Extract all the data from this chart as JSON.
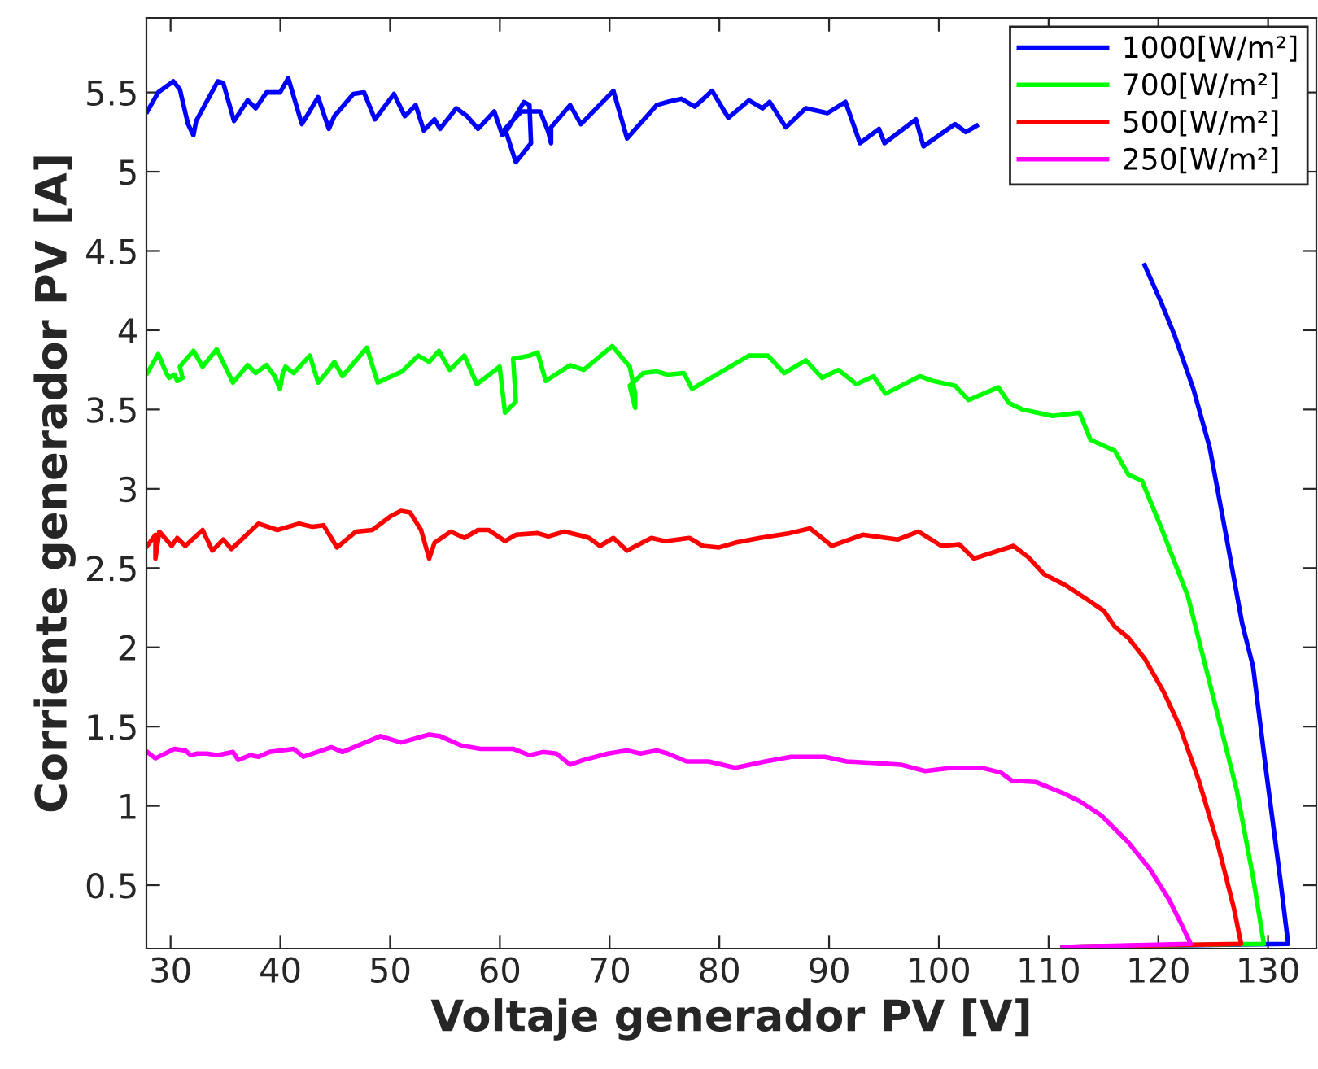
{
  "chart_data": {
    "type": "line",
    "xlabel": "Voltaje generador PV [V]",
    "ylabel": "Corriente generador PV [A]",
    "xlim": [
      27.8,
      134.4
    ],
    "ylim": [
      0.1,
      5.97
    ],
    "xticks": [
      30,
      40,
      50,
      60,
      70,
      80,
      90,
      100,
      110,
      120,
      130
    ],
    "yticks": [
      {
        "value": 0.5,
        "label": "0.5"
      },
      {
        "value": 1,
        "label": "1"
      },
      {
        "value": 1.5,
        "label": "1.5"
      },
      {
        "value": 2,
        "label": "2"
      },
      {
        "value": 2.5,
        "label": "2.5"
      },
      {
        "value": 3,
        "label": "3"
      },
      {
        "value": 3.5,
        "label": "3.5"
      },
      {
        "value": 4,
        "label": "4"
      },
      {
        "value": 4.5,
        "label": "4.5"
      },
      {
        "value": 5,
        "label": "5"
      },
      {
        "value": 5.5,
        "label": "5.5"
      }
    ],
    "grid": false,
    "legend": "top right",
    "marker": "none",
    "line_style": "solid",
    "series": [
      {
        "name": "1000[W/m²]",
        "color": "#0000ff",
        "x": [
          27.88,
          28.87,
          30.25,
          30.84,
          31.59,
          32.08,
          32.33,
          34.3,
          34.8,
          35.78,
          37.02,
          37.75,
          38.74,
          39.98,
          40.72,
          41.96,
          43.44,
          44.42,
          44.92,
          46.65,
          47.63,
          48.62,
          50.35,
          51.34,
          52.33,
          53.07,
          54.05,
          54.55,
          56.03,
          57.02,
          58.01,
          59.49,
          60.23,
          60.72,
          62.2,
          62.7,
          62.84,
          61.46,
          60.47,
          61.95,
          63.68,
          64.42,
          64.67,
          64.67,
          66.4,
          67.39,
          70.35,
          71.59,
          74.3,
          75.29,
          76.53,
          77.76,
          79.34,
          80.82,
          82.7,
          83.93,
          84.58,
          86.06,
          87.88,
          89.86,
          91.49,
          92.82,
          94.55,
          95.05,
          97.91,
          98.6,
          101.47,
          102.45,
          103.44,
          110,
          118.75,
          120.23,
          121.47,
          123.19,
          124.68,
          126.16,
          127.64,
          128.63,
          129.86,
          131.09,
          131.83,
          111.3
        ],
        "values": [
          5.38,
          5.5,
          5.57,
          5.52,
          5.3,
          5.23,
          5.32,
          5.57,
          5.56,
          5.32,
          5.45,
          5.4,
          5.5,
          5.5,
          5.59,
          5.3,
          5.47,
          5.27,
          5.35,
          5.49,
          5.5,
          5.33,
          5.49,
          5.35,
          5.42,
          5.26,
          5.33,
          5.27,
          5.4,
          5.35,
          5.27,
          5.38,
          5.23,
          5.27,
          5.44,
          5.42,
          5.18,
          5.06,
          5.27,
          5.38,
          5.38,
          5.25,
          5.18,
          5.28,
          5.42,
          5.3,
          5.51,
          5.21,
          5.42,
          5.44,
          5.46,
          5.41,
          5.51,
          5.34,
          5.45,
          5.4,
          5.44,
          5.28,
          5.4,
          5.37,
          5.44,
          5.18,
          5.27,
          5.18,
          5.33,
          5.16,
          5.3,
          5.25,
          5.29,
          null,
          4.41,
          4.18,
          3.97,
          3.63,
          3.26,
          2.71,
          2.15,
          1.88,
          1.2,
          0.55,
          0.13,
          0.11
        ]
      },
      {
        "name": "700[W/m²]",
        "color": "#00ff00",
        "x": [
          27.88,
          28.87,
          29.61,
          29.86,
          30.35,
          30.6,
          31.09,
          30.84,
          32.08,
          32.92,
          34.2,
          35.68,
          37.02,
          37.75,
          38.74,
          39.48,
          39.97,
          40.22,
          40.47,
          41.21,
          42.69,
          43.44,
          44.18,
          44.92,
          45.66,
          47.88,
          48.87,
          51.09,
          52.57,
          53.56,
          54.45,
          55.43,
          56.77,
          57.9,
          59.98,
          60.47,
          61.46,
          61.21,
          62.7,
          63.44,
          64.18,
          66.4,
          67.64,
          70.25,
          71.84,
          72.33,
          72.33,
          71.84,
          73.07,
          74.3,
          75.29,
          76.77,
          77.51,
          82.7,
          84.43,
          85.91,
          87.88,
          89.36,
          90.85,
          92.48,
          94.06,
          95.14,
          98.26,
          99.49,
          101.47,
          102.7,
          105.42,
          106.41,
          107.64,
          110.36,
          112.82,
          113.81,
          116.03,
          117.27,
          118.51,
          120.23,
          122.7,
          125.17,
          127.14,
          128.63,
          129.61,
          111.3
        ],
        "values": [
          3.73,
          3.85,
          3.73,
          3.7,
          3.72,
          3.68,
          3.7,
          3.77,
          3.87,
          3.77,
          3.88,
          3.67,
          3.78,
          3.73,
          3.78,
          3.71,
          3.63,
          3.73,
          3.77,
          3.73,
          3.84,
          3.67,
          3.73,
          3.8,
          3.71,
          3.89,
          3.67,
          3.74,
          3.84,
          3.8,
          3.87,
          3.75,
          3.84,
          3.66,
          3.77,
          3.48,
          3.55,
          3.82,
          3.84,
          3.86,
          3.68,
          3.78,
          3.75,
          3.9,
          3.77,
          3.6,
          3.51,
          3.65,
          3.73,
          3.74,
          3.72,
          3.73,
          3.63,
          3.84,
          3.84,
          3.73,
          3.81,
          3.7,
          3.75,
          3.66,
          3.71,
          3.6,
          3.71,
          3.68,
          3.65,
          3.56,
          3.64,
          3.54,
          3.5,
          3.46,
          3.48,
          3.31,
          3.24,
          3.09,
          3.05,
          2.76,
          2.32,
          1.64,
          1.1,
          0.55,
          0.13,
          0.11
        ]
      },
      {
        "name": "500[W/m²]",
        "color": "#ff0000",
        "x": [
          27.88,
          28.62,
          28.62,
          28.97,
          30.1,
          30.6,
          31.34,
          32.92,
          33.81,
          34.8,
          35.54,
          38.0,
          39.73,
          41.71,
          42.94,
          43.93,
          45.17,
          46.89,
          48.38,
          50.1,
          50.99,
          51.83,
          52.82,
          53.56,
          54.05,
          55.53,
          56.77,
          58.01,
          58.99,
          60.47,
          61.46,
          63.44,
          64.42,
          65.9,
          67.64,
          68.13,
          69.12,
          70.35,
          71.59,
          73.81,
          75.04,
          77.27,
          78.5,
          79.98,
          81.46,
          83.69,
          86.4,
          88.28,
          90.25,
          93.07,
          96.28,
          98.15,
          100.23,
          101.86,
          103.19,
          106.8,
          108.13,
          109.61,
          111.59,
          113.56,
          115.04,
          116.03,
          117.27,
          118.75,
          120.48,
          121.96,
          123.69,
          125.41,
          126.9,
          127.54,
          111.3
        ],
        "values": [
          2.64,
          2.71,
          2.56,
          2.73,
          2.64,
          2.69,
          2.64,
          2.74,
          2.61,
          2.68,
          2.62,
          2.78,
          2.74,
          2.78,
          2.76,
          2.77,
          2.63,
          2.73,
          2.74,
          2.83,
          2.86,
          2.85,
          2.74,
          2.56,
          2.66,
          2.73,
          2.69,
          2.74,
          2.74,
          2.67,
          2.71,
          2.72,
          2.7,
          2.73,
          2.7,
          2.69,
          2.64,
          2.69,
          2.61,
          2.69,
          2.67,
          2.69,
          2.64,
          2.63,
          2.66,
          2.69,
          2.72,
          2.75,
          2.64,
          2.71,
          2.68,
          2.73,
          2.64,
          2.65,
          2.56,
          2.64,
          2.57,
          2.46,
          2.39,
          2.3,
          2.23,
          2.13,
          2.06,
          1.93,
          1.72,
          1.5,
          1.16,
          0.76,
          0.35,
          0.13,
          0.11
        ]
      },
      {
        "name": "250[W/m²]",
        "color": "#ff00ff",
        "x": [
          27.88,
          28.62,
          30.35,
          31.34,
          31.83,
          32.42,
          33.31,
          34.3,
          35.68,
          36.17,
          37.26,
          38.0,
          38.99,
          41.21,
          42.1,
          44.67,
          45.66,
          49.12,
          50.99,
          53.56,
          54.55,
          56.52,
          58.25,
          61.21,
          62.7,
          63.93,
          65.17,
          66.4,
          67.64,
          69.85,
          71.59,
          72.82,
          74.3,
          75.29,
          77.02,
          79.0,
          81.46,
          84.18,
          86.55,
          89.61,
          91.59,
          94.31,
          96.53,
          98.75,
          101.22,
          103.93,
          105.66,
          106.65,
          108.87,
          111.34,
          112.82,
          114.8,
          117.27,
          119.24,
          120.97,
          122.2,
          122.95,
          111.3
        ],
        "values": [
          1.34,
          1.3,
          1.36,
          1.35,
          1.32,
          1.33,
          1.33,
          1.32,
          1.34,
          1.29,
          1.32,
          1.31,
          1.34,
          1.36,
          1.31,
          1.37,
          1.34,
          1.44,
          1.4,
          1.45,
          1.44,
          1.38,
          1.36,
          1.36,
          1.32,
          1.34,
          1.33,
          1.26,
          1.29,
          1.33,
          1.35,
          1.33,
          1.35,
          1.33,
          1.28,
          1.28,
          1.24,
          1.28,
          1.31,
          1.31,
          1.28,
          1.27,
          1.26,
          1.22,
          1.24,
          1.24,
          1.21,
          1.16,
          1.15,
          1.08,
          1.03,
          0.94,
          0.77,
          0.6,
          0.41,
          0.24,
          0.13,
          0.11
        ]
      }
    ]
  }
}
